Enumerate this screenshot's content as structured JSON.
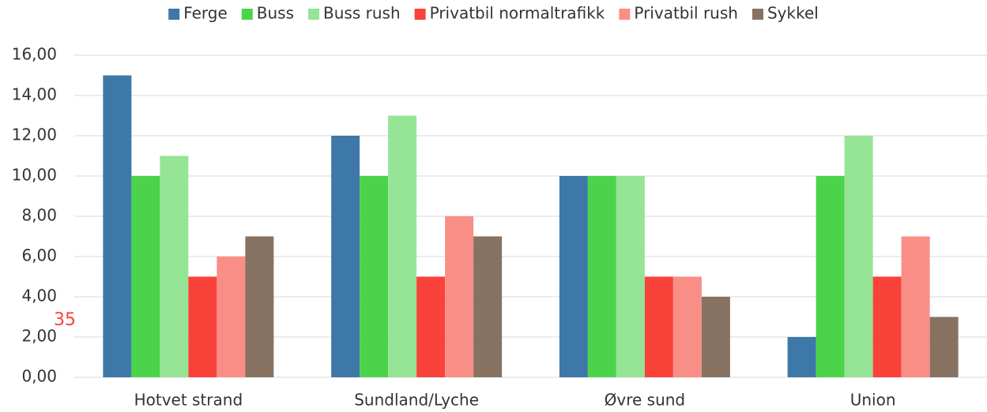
{
  "chart_data": {
    "type": "bar",
    "categories": [
      "Hotvet strand",
      "Sundland/Lyche",
      "Øvre sund",
      "Union"
    ],
    "series": [
      {
        "name": "Ferge",
        "color": "#3d78a8",
        "values": [
          15,
          12,
          10,
          2
        ]
      },
      {
        "name": "Buss",
        "color": "#4cd34c",
        "values": [
          10,
          10,
          10,
          10
        ]
      },
      {
        "name": "Buss rush",
        "color": "#96e496",
        "values": [
          11,
          13,
          10,
          12
        ]
      },
      {
        "name": "Privatbil normaltrafikk",
        "color": "#f9423a",
        "values": [
          5,
          5,
          5,
          5
        ]
      },
      {
        "name": "Privatbil rush",
        "color": "#f98e86",
        "values": [
          6,
          8,
          5,
          7
        ]
      },
      {
        "name": "Sykkel",
        "color": "#877262",
        "values": [
          7,
          7,
          4,
          3
        ]
      }
    ],
    "ylim": [
      0,
      16
    ],
    "yticks": [
      {
        "value": 0,
        "label": "0,00"
      },
      {
        "value": 2,
        "label": "2,00"
      },
      {
        "value": 4,
        "label": "4,00"
      },
      {
        "value": 6,
        "label": "6,00"
      },
      {
        "value": 8,
        "label": "8,00"
      },
      {
        "value": 10,
        "label": "10,00"
      },
      {
        "value": 12,
        "label": "12,00"
      },
      {
        "value": 14,
        "label": "14,00"
      },
      {
        "value": 16,
        "label": "16,00"
      }
    ],
    "grid": true,
    "legend": "top",
    "annotation": "35"
  }
}
